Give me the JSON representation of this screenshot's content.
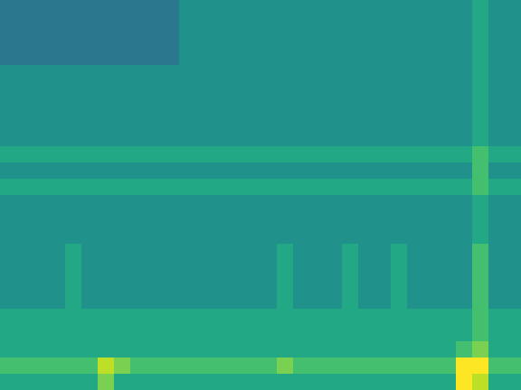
{
  "chart_data": {
    "type": "heatmap",
    "tick_labels": false,
    "zlim": [
      0,
      10
    ],
    "cells": [
      [
        4,
        4,
        4,
        4,
        4,
        4,
        4,
        4,
        4,
        4,
        4,
        5,
        5,
        5,
        5,
        5,
        5,
        5,
        5,
        5,
        5,
        5,
        5,
        5,
        5,
        5,
        5,
        5,
        5,
        6,
        5,
        5
      ],
      [
        4,
        4,
        4,
        4,
        4,
        4,
        4,
        4,
        4,
        4,
        4,
        5,
        5,
        5,
        5,
        5,
        5,
        5,
        5,
        5,
        5,
        5,
        5,
        5,
        5,
        5,
        5,
        5,
        5,
        6,
        5,
        5
      ],
      [
        4,
        4,
        4,
        4,
        4,
        4,
        4,
        4,
        4,
        4,
        4,
        5,
        5,
        5,
        5,
        5,
        5,
        5,
        5,
        5,
        5,
        5,
        5,
        5,
        5,
        5,
        5,
        5,
        5,
        6,
        5,
        5
      ],
      [
        4,
        4,
        4,
        4,
        4,
        4,
        4,
        4,
        4,
        4,
        4,
        5,
        5,
        5,
        5,
        5,
        5,
        5,
        5,
        5,
        5,
        5,
        5,
        5,
        5,
        5,
        5,
        5,
        5,
        6,
        5,
        5
      ],
      [
        5,
        5,
        5,
        5,
        5,
        5,
        5,
        5,
        5,
        5,
        5,
        5,
        5,
        5,
        5,
        5,
        5,
        5,
        5,
        5,
        5,
        5,
        5,
        5,
        5,
        5,
        5,
        5,
        5,
        6,
        5,
        5
      ],
      [
        5,
        5,
        5,
        5,
        5,
        5,
        5,
        5,
        5,
        5,
        5,
        5,
        5,
        5,
        5,
        5,
        5,
        5,
        5,
        5,
        5,
        5,
        5,
        5,
        5,
        5,
        5,
        5,
        5,
        6,
        5,
        5
      ],
      [
        5,
        5,
        5,
        5,
        5,
        5,
        5,
        5,
        5,
        5,
        5,
        5,
        5,
        5,
        5,
        5,
        5,
        5,
        5,
        5,
        5,
        5,
        5,
        5,
        5,
        5,
        5,
        5,
        5,
        6,
        5,
        5
      ],
      [
        5,
        5,
        5,
        5,
        5,
        5,
        5,
        5,
        5,
        5,
        5,
        5,
        5,
        5,
        5,
        5,
        5,
        5,
        5,
        5,
        5,
        5,
        5,
        5,
        5,
        5,
        5,
        5,
        5,
        6,
        5,
        5
      ],
      [
        5,
        5,
        5,
        5,
        5,
        5,
        5,
        5,
        5,
        5,
        5,
        5,
        5,
        5,
        5,
        5,
        5,
        5,
        5,
        5,
        5,
        5,
        5,
        5,
        5,
        5,
        5,
        5,
        5,
        6,
        5,
        5
      ],
      [
        6,
        6,
        6,
        6,
        6,
        6,
        6,
        6,
        6,
        6,
        6,
        6,
        6,
        6,
        6,
        6,
        6,
        6,
        6,
        6,
        6,
        6,
        6,
        6,
        6,
        6,
        6,
        6,
        6,
        7,
        6,
        6
      ],
      [
        5,
        5,
        5,
        5,
        5,
        5,
        5,
        5,
        5,
        5,
        5,
        5,
        5,
        5,
        5,
        5,
        5,
        5,
        5,
        5,
        5,
        5,
        5,
        5,
        5,
        5,
        5,
        5,
        5,
        7,
        5,
        5
      ],
      [
        6,
        6,
        6,
        6,
        6,
        6,
        6,
        6,
        6,
        6,
        6,
        6,
        6,
        6,
        6,
        6,
        6,
        6,
        6,
        6,
        6,
        6,
        6,
        6,
        6,
        6,
        6,
        6,
        6,
        7,
        6,
        6
      ],
      [
        5,
        5,
        5,
        5,
        5,
        5,
        5,
        5,
        5,
        5,
        5,
        5,
        5,
        5,
        5,
        5,
        5,
        5,
        5,
        5,
        5,
        5,
        5,
        5,
        5,
        5,
        5,
        5,
        5,
        6,
        5,
        5
      ],
      [
        5,
        5,
        5,
        5,
        5,
        5,
        5,
        5,
        5,
        5,
        5,
        5,
        5,
        5,
        5,
        5,
        5,
        5,
        5,
        5,
        5,
        5,
        5,
        5,
        5,
        5,
        5,
        5,
        5,
        6,
        5,
        5
      ],
      [
        5,
        5,
        5,
        5,
        5,
        5,
        5,
        5,
        5,
        5,
        5,
        5,
        5,
        5,
        5,
        5,
        5,
        5,
        5,
        5,
        5,
        5,
        5,
        5,
        5,
        5,
        5,
        5,
        5,
        6,
        5,
        5
      ],
      [
        5,
        5,
        5,
        5,
        6,
        5,
        5,
        5,
        5,
        5,
        5,
        5,
        5,
        5,
        5,
        5,
        5,
        6,
        5,
        5,
        5,
        6,
        5,
        5,
        6,
        5,
        5,
        5,
        5,
        7,
        5,
        5
      ],
      [
        5,
        5,
        5,
        5,
        6,
        5,
        5,
        5,
        5,
        5,
        5,
        5,
        5,
        5,
        5,
        5,
        5,
        6,
        5,
        5,
        5,
        6,
        5,
        5,
        6,
        5,
        5,
        5,
        5,
        7,
        5,
        5
      ],
      [
        5,
        5,
        5,
        5,
        6,
        5,
        5,
        5,
        5,
        5,
        5,
        5,
        5,
        5,
        5,
        5,
        5,
        6,
        5,
        5,
        5,
        6,
        5,
        5,
        6,
        5,
        5,
        5,
        5,
        7,
        5,
        5
      ],
      [
        5,
        5,
        5,
        5,
        6,
        5,
        5,
        5,
        5,
        5,
        5,
        5,
        5,
        5,
        5,
        5,
        5,
        6,
        5,
        5,
        5,
        6,
        5,
        5,
        6,
        5,
        5,
        5,
        5,
        7,
        5,
        5
      ],
      [
        6,
        6,
        6,
        6,
        6,
        6,
        6,
        6,
        6,
        6,
        6,
        6,
        6,
        6,
        6,
        6,
        6,
        6,
        6,
        6,
        6,
        6,
        6,
        6,
        6,
        6,
        6,
        6,
        6,
        7,
        6,
        6
      ],
      [
        6,
        6,
        6,
        6,
        6,
        6,
        6,
        6,
        6,
        6,
        6,
        6,
        6,
        6,
        6,
        6,
        6,
        6,
        6,
        6,
        6,
        6,
        6,
        6,
        6,
        6,
        6,
        6,
        6,
        7,
        6,
        6
      ],
      [
        6,
        6,
        6,
        6,
        6,
        6,
        6,
        6,
        6,
        6,
        6,
        6,
        6,
        6,
        6,
        6,
        6,
        6,
        6,
        6,
        6,
        6,
        6,
        6,
        6,
        6,
        6,
        6,
        7,
        8,
        6,
        6
      ],
      [
        7,
        7,
        7,
        7,
        7,
        7,
        9,
        8,
        7,
        7,
        7,
        7,
        7,
        7,
        7,
        7,
        7,
        8,
        7,
        7,
        7,
        7,
        7,
        7,
        7,
        7,
        7,
        7,
        10,
        10,
        7,
        7
      ],
      [
        6,
        6,
        6,
        6,
        6,
        6,
        8,
        6,
        6,
        6,
        6,
        6,
        6,
        6,
        6,
        6,
        6,
        6,
        6,
        6,
        6,
        6,
        6,
        6,
        6,
        6,
        6,
        6,
        10,
        9,
        6,
        6
      ]
    ]
  }
}
